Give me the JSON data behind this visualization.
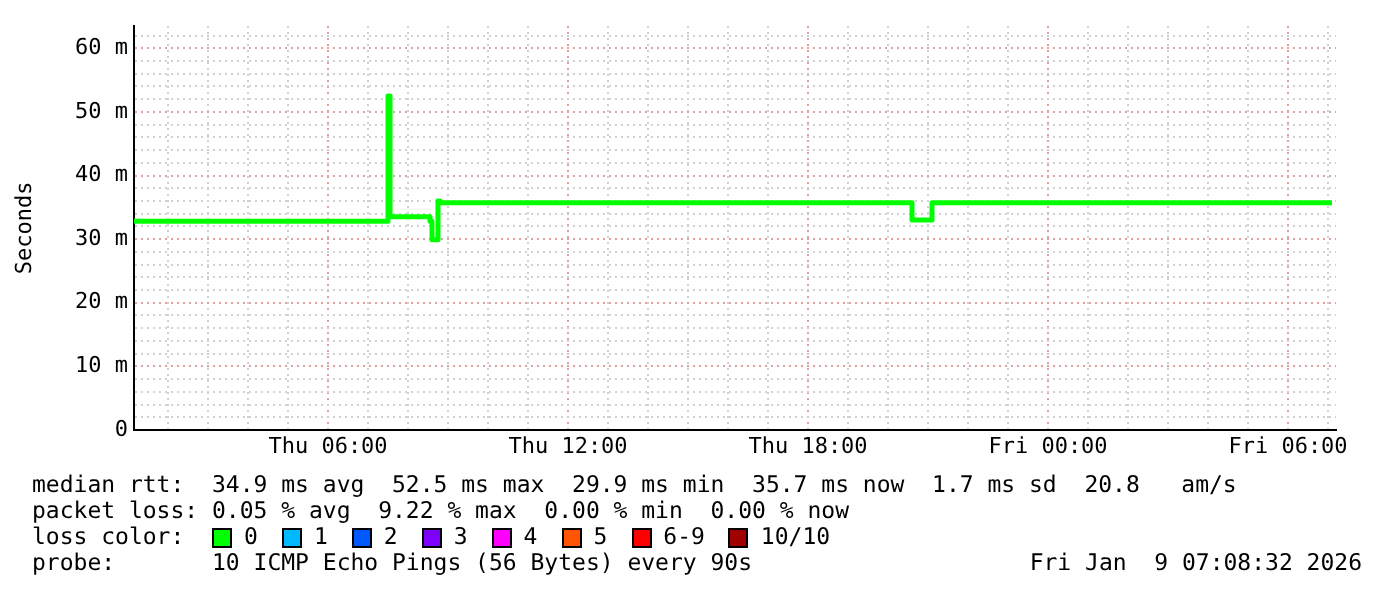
{
  "chart_data": {
    "type": "step",
    "ylabel": "Seconds",
    "legend_title": "loss color:",
    "x": [
      "2026-01-08T01:09",
      "2026-01-08T07:27",
      "2026-01-08T07:30",
      "2026-01-08T07:33",
      "2026-01-08T08:33",
      "2026-01-08T08:36",
      "2026-01-08T08:45",
      "2026-01-08T08:48",
      "2026-01-08T20:33",
      "2026-01-08T20:36",
      "2026-01-08T21:03",
      "2026-01-08T21:06",
      "2026-01-09T07:06"
    ],
    "series": [
      {
        "name": "0",
        "color": "#00ff00",
        "values": [
          32.8,
          32.8,
          52.5,
          33.5,
          32.8,
          29.9,
          36,
          35.7,
          35.7,
          33,
          33,
          35.7,
          35.7
        ]
      },
      {
        "name": "1",
        "color": "#00b8ff",
        "values": [
          null,
          null,
          null,
          null,
          null,
          null,
          null,
          null,
          null,
          null,
          null,
          null,
          null
        ]
      },
      {
        "name": "2",
        "color": "#0059ff",
        "values": [
          null,
          null,
          null,
          null,
          null,
          null,
          null,
          null,
          null,
          null,
          null,
          null,
          null
        ]
      },
      {
        "name": "3",
        "color": "#7e00ff",
        "values": [
          null,
          null,
          null,
          null,
          null,
          null,
          null,
          null,
          null,
          null,
          null,
          null,
          null
        ]
      },
      {
        "name": "4",
        "color": "#ff00ff",
        "values": [
          null,
          null,
          null,
          null,
          null,
          null,
          null,
          null,
          null,
          null,
          null,
          null,
          null
        ]
      },
      {
        "name": "5",
        "color": "#ff5500",
        "values": [
          null,
          null,
          null,
          null,
          null,
          null,
          null,
          null,
          null,
          null,
          null,
          null,
          null
        ]
      },
      {
        "name": "6-9",
        "color": "#ff0000",
        "values": [
          null,
          null,
          null,
          null,
          null,
          null,
          null,
          null,
          null,
          null,
          null,
          null,
          null
        ]
      },
      {
        "name": "10/10",
        "color": "#a10000",
        "values": [
          null,
          null,
          null,
          null,
          null,
          null,
          null,
          null,
          null,
          null,
          null,
          null,
          null
        ]
      }
    ],
    "xlim": [
      "2026-01-08T01:09",
      "2026-01-09T07:12"
    ],
    "xticks": [
      {
        "value": "2026-01-08T02:00",
        "label": null
      },
      {
        "value": "2026-01-08T03:00",
        "label": null
      },
      {
        "value": "2026-01-08T04:00",
        "label": null
      },
      {
        "value": "2026-01-08T05:00",
        "label": null
      },
      {
        "value": "2026-01-08T06:00",
        "label": "Thu 06:00"
      },
      {
        "value": "2026-01-08T07:00",
        "label": null
      },
      {
        "value": "2026-01-08T08:00",
        "label": null
      },
      {
        "value": "2026-01-08T09:00",
        "label": null
      },
      {
        "value": "2026-01-08T10:00",
        "label": null
      },
      {
        "value": "2026-01-08T11:00",
        "label": null
      },
      {
        "value": "2026-01-08T12:00",
        "label": "Thu 12:00"
      },
      {
        "value": "2026-01-08T13:00",
        "label": null
      },
      {
        "value": "2026-01-08T14:00",
        "label": null
      },
      {
        "value": "2026-01-08T15:00",
        "label": null
      },
      {
        "value": "2026-01-08T16:00",
        "label": null
      },
      {
        "value": "2026-01-08T17:00",
        "label": null
      },
      {
        "value": "2026-01-08T18:00",
        "label": "Thu 18:00"
      },
      {
        "value": "2026-01-08T19:00",
        "label": null
      },
      {
        "value": "2026-01-08T20:00",
        "label": null
      },
      {
        "value": "2026-01-08T21:00",
        "label": null
      },
      {
        "value": "2026-01-08T22:00",
        "label": null
      },
      {
        "value": "2026-01-08T23:00",
        "label": null
      },
      {
        "value": "2026-01-09T00:00",
        "label": "Fri 00:00"
      },
      {
        "value": "2026-01-09T01:00",
        "label": null
      },
      {
        "value": "2026-01-09T02:00",
        "label": null
      },
      {
        "value": "2026-01-09T03:00",
        "label": null
      },
      {
        "value": "2026-01-09T04:00",
        "label": null
      },
      {
        "value": "2026-01-09T05:00",
        "label": null
      },
      {
        "value": "2026-01-09T06:00",
        "label": "Fri 06:00"
      },
      {
        "value": "2026-01-09T07:00",
        "label": null
      }
    ],
    "ylim": [
      0,
      63.5
    ],
    "yticks": [
      0,
      {
        "value": 2,
        "label": null
      },
      {
        "value": 4,
        "label": null
      },
      {
        "value": 6,
        "label": null
      },
      {
        "value": 8,
        "label": null
      },
      {
        "value": 10,
        "label": "10 m"
      },
      {
        "value": 12,
        "label": null
      },
      {
        "value": 14,
        "label": null
      },
      {
        "value": 16,
        "label": null
      },
      {
        "value": 18,
        "label": null
      },
      {
        "value": 20,
        "label": "20 m"
      },
      {
        "value": 22,
        "label": null
      },
      {
        "value": 24,
        "label": null
      },
      {
        "value": 26,
        "label": null
      },
      {
        "value": 28,
        "label": null
      },
      {
        "value": 30,
        "label": "30 m"
      },
      {
        "value": 32,
        "label": null
      },
      {
        "value": 34,
        "label": null
      },
      {
        "value": 36,
        "label": null
      },
      {
        "value": 38,
        "label": null
      },
      {
        "value": 40,
        "label": "40 m"
      },
      {
        "value": 42,
        "label": null
      },
      {
        "value": 44,
        "label": null
      },
      {
        "value": 46,
        "label": null
      },
      {
        "value": 48,
        "label": null
      },
      {
        "value": 50,
        "label": "50 m"
      },
      {
        "value": 52,
        "label": null
      },
      {
        "value": 54,
        "label": null
      },
      {
        "value": 56,
        "label": null
      },
      {
        "value": 58,
        "label": null
      },
      {
        "value": 60,
        "label": "60 m"
      },
      {
        "value": 62,
        "label": null
      }
    ],
    "grid": true,
    "legend": "bottom",
    "marker": "none",
    "annotations": [
      "median rtt:  34.9 ms avg  52.5 ms max  29.9 ms min  35.7 ms now  1.7 ms sd  20.8   am/s",
      "packet loss: 0.05 % avg  9.22 % max  0.00 % min  0.00 % now",
      "probe:       10 ICMP Echo Pings (56 Bytes) every 90s",
      "Fri Jan  9 07:08:32 2026"
    ]
  }
}
